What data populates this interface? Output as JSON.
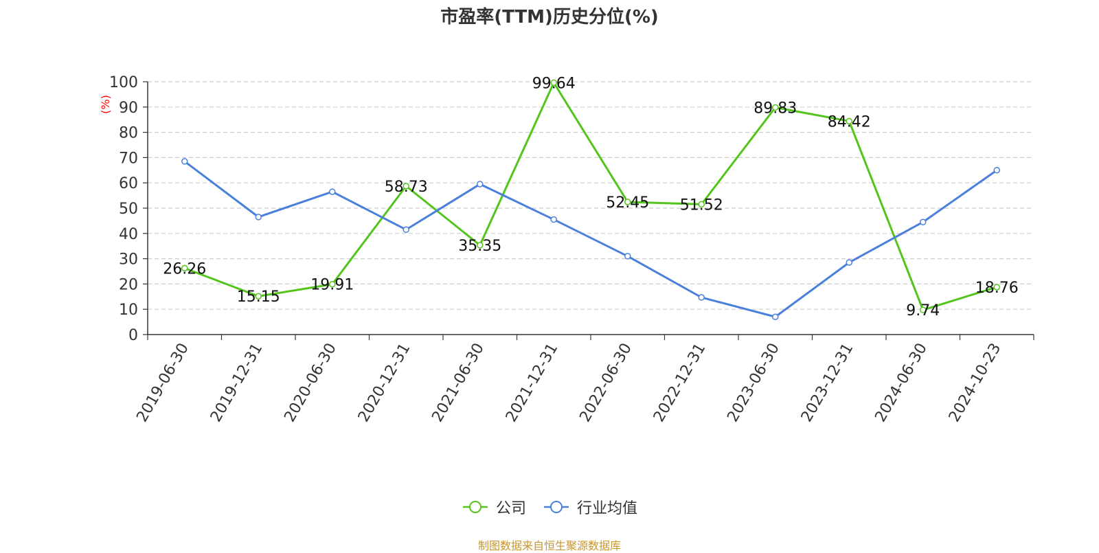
{
  "chart_data": {
    "type": "line",
    "title": "市盈率(TTM)历史分位(%)",
    "ylabel": "(%)",
    "xlabel": "",
    "ylim": [
      0,
      100
    ],
    "y_ticks": [
      "0",
      "10",
      "20",
      "30",
      "40",
      "50",
      "60",
      "70",
      "80",
      "90",
      "100"
    ],
    "categories": [
      "2019-06-30",
      "2019-12-31",
      "2020-06-30",
      "2020-12-31",
      "2021-06-30",
      "2021-12-31",
      "2022-06-30",
      "2022-12-31",
      "2023-06-30",
      "2023-12-31",
      "2024-06-30",
      "2024-10-23"
    ],
    "series": [
      {
        "name": "公司",
        "color": "#52c41a",
        "values": [
          26.26,
          15.15,
          19.91,
          58.73,
          35.35,
          99.64,
          52.45,
          51.52,
          89.83,
          84.42,
          9.74,
          18.76
        ],
        "labels": [
          "26.26",
          "15.15",
          "19.91",
          "58.73",
          "35.35",
          "99.64",
          "52.45",
          "51.52",
          "89.83",
          "84.42",
          "9.74",
          "18.76"
        ]
      },
      {
        "name": "行业均值",
        "color": "#4a7fdc",
        "values": [
          68.5,
          46.5,
          56.5,
          41.5,
          59.5,
          45.5,
          31.0,
          14.7,
          7.0,
          28.5,
          44.5,
          65.0
        ]
      }
    ],
    "grid": true,
    "legend": "bottom-center",
    "ylabel_color": "#ff0000"
  },
  "footer": {
    "source": "制图数据来自恒生聚源数据库"
  }
}
